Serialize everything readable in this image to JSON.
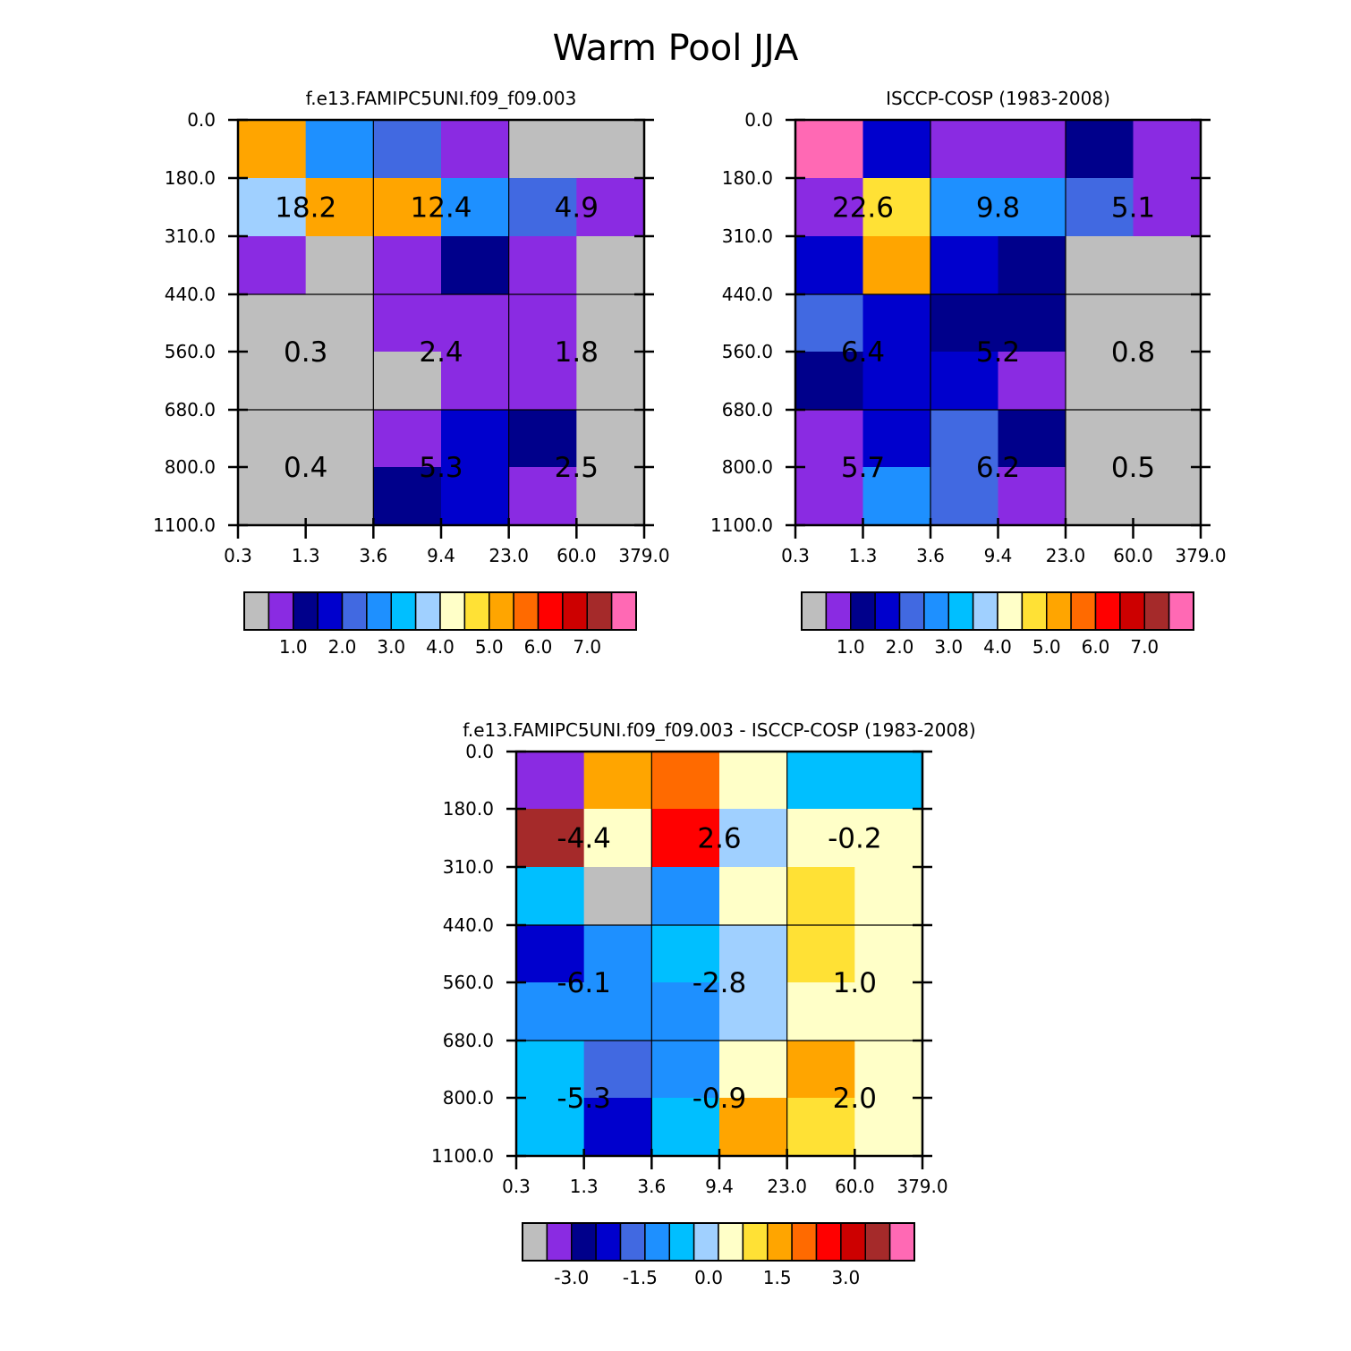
{
  "title": "Warm Pool JJA",
  "chart_data": [
    {
      "type": "heatmap",
      "title": "f.e13.FAMIPC5UNI.f09_f09.003",
      "x_tick_labels": [
        "0.3",
        "1.3",
        "3.6",
        "9.4",
        "23.0",
        "60.0",
        "379.0"
      ],
      "y_tick_labels": [
        "0.0",
        "180.0",
        "310.0",
        "440.0",
        "560.0",
        "680.0",
        "800.0",
        "1100.0"
      ],
      "cell_colors": [
        [
          "#FFA500",
          "#1E90FF",
          "#4169E1",
          "#8A2BE2",
          "#BEBEBE",
          "#BEBEBE"
        ],
        [
          "#A0D0FF",
          "#FFA500",
          "#FFA500",
          "#1E90FF",
          "#4169E1",
          "#8A2BE2"
        ],
        [
          "#8A2BE2",
          "#BEBEBE",
          "#8A2BE2",
          "#00008B",
          "#8A2BE2",
          "#BEBEBE"
        ],
        [
          "#BEBEBE",
          "#BEBEBE",
          "#8A2BE2",
          "#8A2BE2",
          "#8A2BE2",
          "#BEBEBE"
        ],
        [
          "#BEBEBE",
          "#BEBEBE",
          "#BEBEBE",
          "#8A2BE2",
          "#8A2BE2",
          "#BEBEBE"
        ],
        [
          "#BEBEBE",
          "#BEBEBE",
          "#8A2BE2",
          "#0000CD",
          "#00008B",
          "#BEBEBE"
        ],
        [
          "#BEBEBE",
          "#BEBEBE",
          "#00008B",
          "#0000CD",
          "#8A2BE2",
          "#BEBEBE"
        ]
      ],
      "summary_labels": [
        {
          "text": "18.2",
          "x_idx": 1,
          "y_idx": 1.5
        },
        {
          "text": "12.4",
          "x_idx": 3,
          "y_idx": 1.5
        },
        {
          "text": "4.9",
          "x_idx": 5,
          "y_idx": 1.5
        },
        {
          "text": "0.3",
          "x_idx": 1,
          "y_idx": 4
        },
        {
          "text": "2.4",
          "x_idx": 3,
          "y_idx": 4
        },
        {
          "text": "1.8",
          "x_idx": 5,
          "y_idx": 4
        },
        {
          "text": "0.4",
          "x_idx": 1,
          "y_idx": 6
        },
        {
          "text": "5.3",
          "x_idx": 3,
          "y_idx": 6
        },
        {
          "text": "2.5",
          "x_idx": 5,
          "y_idx": 6
        }
      ],
      "colorbar": {
        "colors": [
          "#BEBEBE",
          "#8A2BE2",
          "#00008B",
          "#0000CD",
          "#4169E1",
          "#1E90FF",
          "#00BFFF",
          "#A0D0FF",
          "#FFFFC8",
          "#FFE135",
          "#FFA500",
          "#FF6A00",
          "#FF0000",
          "#CD0000",
          "#A52A2A",
          "#FF69B4"
        ],
        "labels": [
          "1.0",
          "2.0",
          "3.0",
          "4.0",
          "5.0",
          "6.0",
          "7.0"
        ]
      }
    },
    {
      "type": "heatmap",
      "title": "ISCCP-COSP (1983-2008)",
      "x_tick_labels": [
        "0.3",
        "1.3",
        "3.6",
        "9.4",
        "23.0",
        "60.0",
        "379.0"
      ],
      "y_tick_labels": [
        "0.0",
        "180.0",
        "310.0",
        "440.0",
        "560.0",
        "680.0",
        "800.0",
        "1100.0"
      ],
      "cell_colors": [
        [
          "#FF69B4",
          "#0000CD",
          "#8A2BE2",
          "#8A2BE2",
          "#00008B",
          "#8A2BE2"
        ],
        [
          "#8A2BE2",
          "#FFE135",
          "#1E90FF",
          "#1E90FF",
          "#4169E1",
          "#8A2BE2"
        ],
        [
          "#0000CD",
          "#FFA500",
          "#0000CD",
          "#00008B",
          "#BEBEBE",
          "#BEBEBE"
        ],
        [
          "#4169E1",
          "#0000CD",
          "#00008B",
          "#00008B",
          "#BEBEBE",
          "#BEBEBE"
        ],
        [
          "#00008B",
          "#0000CD",
          "#0000CD",
          "#8A2BE2",
          "#BEBEBE",
          "#BEBEBE"
        ],
        [
          "#8A2BE2",
          "#0000CD",
          "#4169E1",
          "#00008B",
          "#BEBEBE",
          "#BEBEBE"
        ],
        [
          "#8A2BE2",
          "#1E90FF",
          "#4169E1",
          "#8A2BE2",
          "#BEBEBE",
          "#BEBEBE"
        ]
      ],
      "summary_labels": [
        {
          "text": "22.6",
          "x_idx": 1,
          "y_idx": 1.5
        },
        {
          "text": "9.8",
          "x_idx": 3,
          "y_idx": 1.5
        },
        {
          "text": "5.1",
          "x_idx": 5,
          "y_idx": 1.5
        },
        {
          "text": "6.4",
          "x_idx": 1,
          "y_idx": 4
        },
        {
          "text": "5.2",
          "x_idx": 3,
          "y_idx": 4
        },
        {
          "text": "0.8",
          "x_idx": 5,
          "y_idx": 4
        },
        {
          "text": "5.7",
          "x_idx": 1,
          "y_idx": 6
        },
        {
          "text": "6.2",
          "x_idx": 3,
          "y_idx": 6
        },
        {
          "text": "0.5",
          "x_idx": 5,
          "y_idx": 6
        }
      ],
      "colorbar": {
        "colors": [
          "#BEBEBE",
          "#8A2BE2",
          "#00008B",
          "#0000CD",
          "#4169E1",
          "#1E90FF",
          "#00BFFF",
          "#A0D0FF",
          "#FFFFC8",
          "#FFE135",
          "#FFA500",
          "#FF6A00",
          "#FF0000",
          "#CD0000",
          "#A52A2A",
          "#FF69B4"
        ],
        "labels": [
          "1.0",
          "2.0",
          "3.0",
          "4.0",
          "5.0",
          "6.0",
          "7.0"
        ]
      }
    },
    {
      "type": "heatmap",
      "title": "f.e13.FAMIPC5UNI.f09_f09.003 - ISCCP-COSP (1983-2008)",
      "x_tick_labels": [
        "0.3",
        "1.3",
        "3.6",
        "9.4",
        "23.0",
        "60.0",
        "379.0"
      ],
      "y_tick_labels": [
        "0.0",
        "180.0",
        "310.0",
        "440.0",
        "560.0",
        "680.0",
        "800.0",
        "1100.0"
      ],
      "cell_colors": [
        [
          "#8A2BE2",
          "#FFA500",
          "#FF6A00",
          "#FFFFC8",
          "#00BFFF",
          "#00BFFF"
        ],
        [
          "#A52A2A",
          "#FFFFC8",
          "#FF0000",
          "#A0D0FF",
          "#FFFFC8",
          "#FFFFC8"
        ],
        [
          "#00BFFF",
          "#BEBEBE",
          "#1E90FF",
          "#FFFFC8",
          "#FFE135",
          "#FFFFC8"
        ],
        [
          "#0000CD",
          "#1E90FF",
          "#00BFFF",
          "#A0D0FF",
          "#FFE135",
          "#FFFFC8"
        ],
        [
          "#1E90FF",
          "#1E90FF",
          "#1E90FF",
          "#A0D0FF",
          "#FFFFC8",
          "#FFFFC8"
        ],
        [
          "#00BFFF",
          "#4169E1",
          "#1E90FF",
          "#FFFFC8",
          "#FFA500",
          "#FFFFC8"
        ],
        [
          "#00BFFF",
          "#0000CD",
          "#00BFFF",
          "#FFA500",
          "#FFE135",
          "#FFFFC8"
        ]
      ],
      "summary_labels": [
        {
          "text": "-4.4",
          "x_idx": 1,
          "y_idx": 1.5
        },
        {
          "text": "2.6",
          "x_idx": 3,
          "y_idx": 1.5
        },
        {
          "text": "-0.2",
          "x_idx": 5,
          "y_idx": 1.5
        },
        {
          "text": "-6.1",
          "x_idx": 1,
          "y_idx": 4
        },
        {
          "text": "-2.8",
          "x_idx": 3,
          "y_idx": 4
        },
        {
          "text": "1.0",
          "x_idx": 5,
          "y_idx": 4
        },
        {
          "text": "-5.3",
          "x_idx": 1,
          "y_idx": 6
        },
        {
          "text": "-0.9",
          "x_idx": 3,
          "y_idx": 6
        },
        {
          "text": "2.0",
          "x_idx": 5,
          "y_idx": 6
        }
      ],
      "colorbar": {
        "colors": [
          "#BEBEBE",
          "#8A2BE2",
          "#00008B",
          "#0000CD",
          "#4169E1",
          "#1E90FF",
          "#00BFFF",
          "#A0D0FF",
          "#FFFFC8",
          "#FFE135",
          "#FFA500",
          "#FF6A00",
          "#FF0000",
          "#CD0000",
          "#A52A2A",
          "#FF69B4"
        ],
        "labels": [
          "-3.0",
          "-1.5",
          "0.0",
          "1.5",
          "3.0"
        ]
      }
    }
  ]
}
